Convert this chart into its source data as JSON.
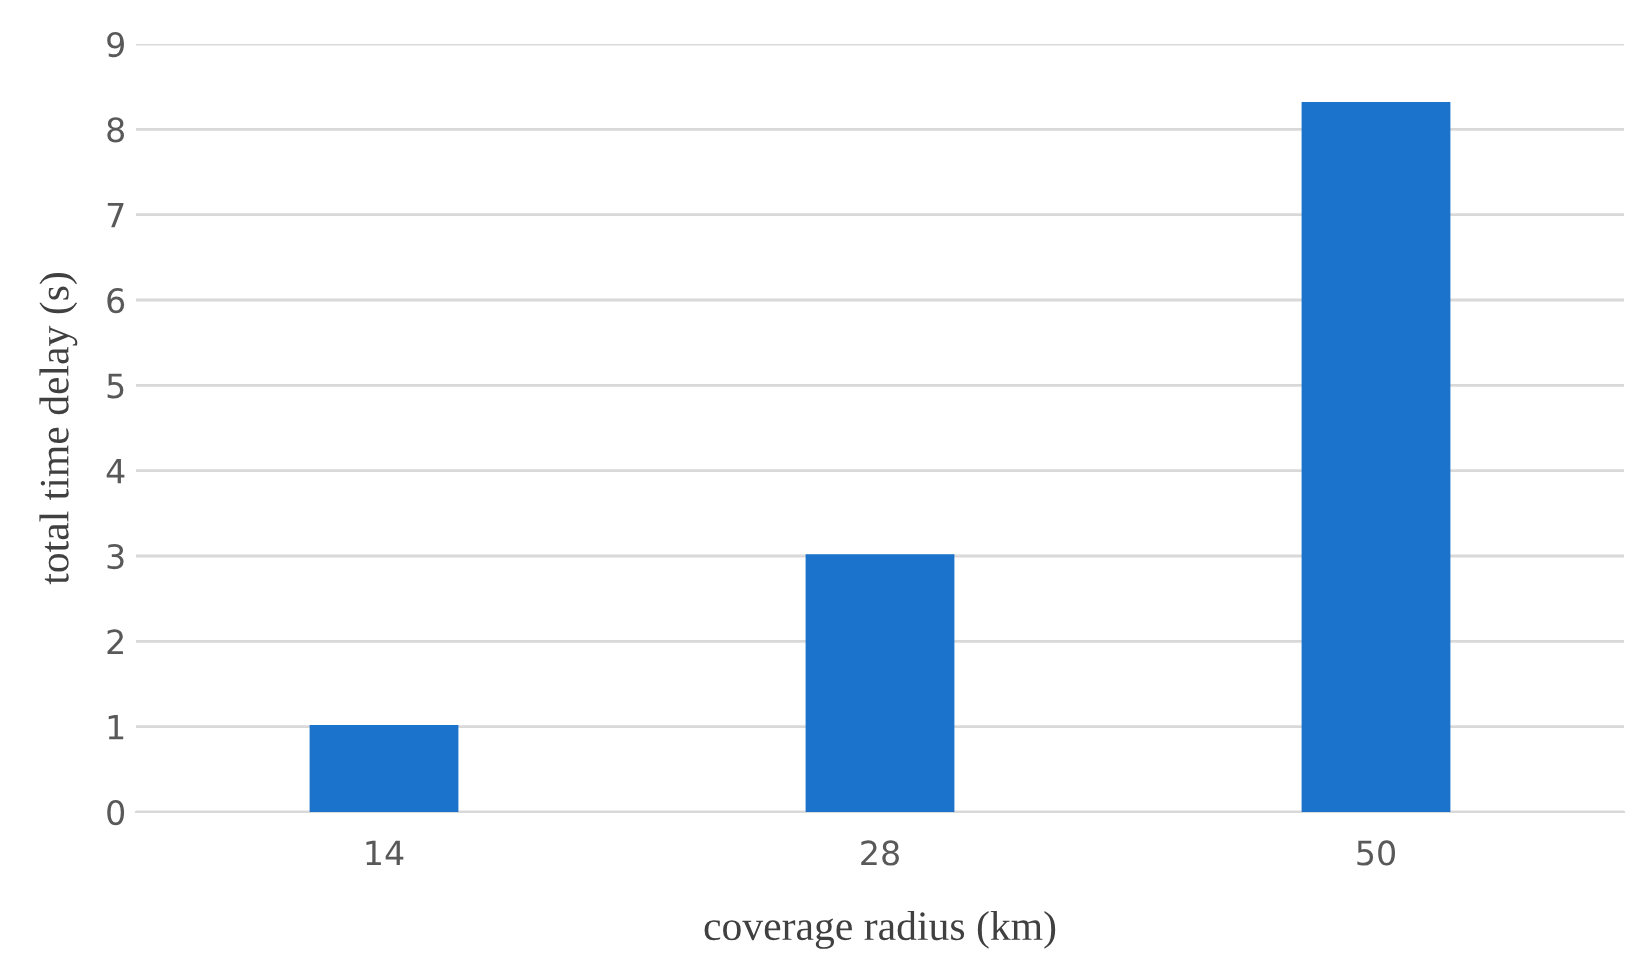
{
  "chart_data": {
    "type": "bar",
    "xlabel": "coverage radius (km)",
    "ylabel": "total time delay (s)",
    "categories": [
      "14",
      "28",
      "50"
    ],
    "values": [
      1.02,
      3.02,
      8.32
    ],
    "color": "#1c73cc",
    "ylim": [
      0,
      9
    ],
    "yticks": [
      0,
      1,
      2,
      3,
      4,
      5,
      6,
      7,
      8,
      9
    ],
    "grid": "y"
  }
}
